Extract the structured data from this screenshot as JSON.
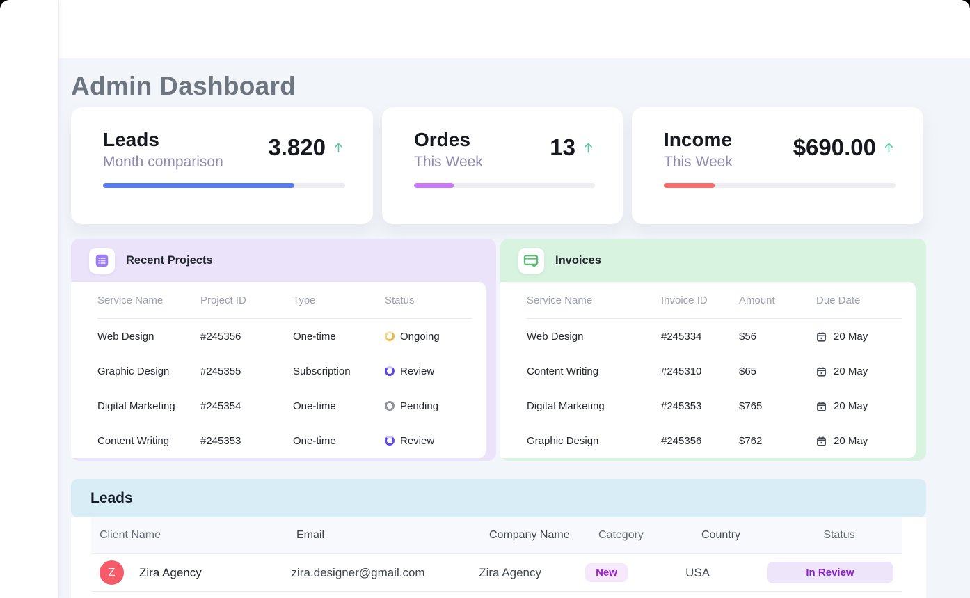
{
  "page": {
    "title": "Admin Dashboard"
  },
  "stat_cards": [
    {
      "title": "Leads",
      "subtitle": "Month comparison",
      "value": "3.820",
      "trend": "up",
      "trend_icon": "arrow-up-icon",
      "bar_color": "#5b7ce8",
      "bar_percent": 79
    },
    {
      "title": "Ordes",
      "subtitle": "This Week",
      "value": "13",
      "trend": "up",
      "trend_icon": "arrow-up-icon",
      "bar_color": "#c77cf6",
      "bar_percent": 22
    },
    {
      "title": "Income",
      "subtitle": "This Week",
      "value": "$690.00",
      "trend": "up",
      "trend_icon": "arrow-up-icon",
      "bar_color": "#f76c6c",
      "bar_percent": 22
    }
  ],
  "recent_projects": {
    "title": "Recent Projects",
    "icon": "project-list-icon",
    "panel_color": "#ebe3fa",
    "columns": [
      "Service Name",
      "Project ID",
      "Type",
      "Status"
    ],
    "rows": [
      {
        "service": "Web Design",
        "project_id": "#245356",
        "type": "One-time",
        "status": "Ongoing",
        "status_color": "#eab941"
      },
      {
        "service": "Graphic Design",
        "project_id": "#245355",
        "type": "Subscription",
        "status": "Review",
        "status_color": "#5b48ee"
      },
      {
        "service": "Digital Marketing",
        "project_id": "#245354",
        "type": "One-time",
        "status": "Pending",
        "status_color": "#8d939c"
      },
      {
        "service": "Content Writing",
        "project_id": "#245353",
        "type": "One-time",
        "status": "Review",
        "status_color": "#5b48ee"
      }
    ]
  },
  "invoices": {
    "title": "Invoices",
    "icon": "invoice-card-icon",
    "panel_color": "#d8f3e0",
    "columns": [
      "Service Name",
      "Invoice ID",
      "Amount",
      "Due Date"
    ],
    "rows": [
      {
        "service": "Web Design",
        "invoice_id": "#245334",
        "amount": "$56",
        "due_date": "20 May"
      },
      {
        "service": "Content Writing",
        "invoice_id": "#245310",
        "amount": "$65",
        "due_date": "20 May"
      },
      {
        "service": "Digital Marketing",
        "invoice_id": "#245353",
        "amount": "$765",
        "due_date": "20 May"
      },
      {
        "service": "Graphic Design",
        "invoice_id": "#245356",
        "amount": "$762",
        "due_date": "20 May"
      }
    ]
  },
  "leads": {
    "title": "Leads",
    "band_color": "#d9edf7",
    "columns": [
      "Client Name",
      "Email",
      "Company Name",
      "Category",
      "Country",
      "Status"
    ],
    "rows": [
      {
        "avatar_letter": "Z",
        "avatar_color": "#f65b69",
        "client": "Zira Agency",
        "email": "zira.designer@gmail.com",
        "company": "Zira Agency",
        "category": "New",
        "country": "USA",
        "status": "In Review"
      }
    ]
  },
  "colors": {
    "page_background": "#f2f5f9",
    "trend_arrow": "#57c9a1",
    "badge_new_bg": "#f6e8fd",
    "badge_new_text": "#a21bd6",
    "badge_review_bg": "#efe5fb",
    "badge_review_text": "#8b22d8"
  }
}
